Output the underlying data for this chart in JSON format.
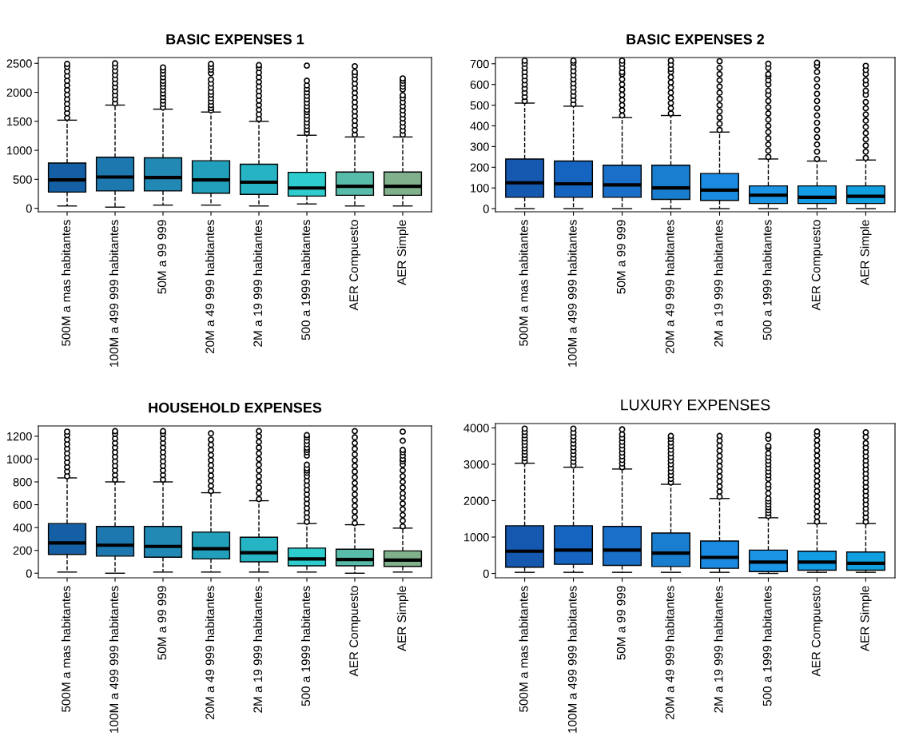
{
  "chart_data": [
    {
      "type": "box",
      "title": "BASIC EXPENSES 1",
      "categories": [
        "500M a mas habitantes",
        "100M a 499 999 habitantes",
        "50M a 99 999",
        "20M a 49 999 habitantes",
        "2M a 19 999 habitantes",
        "500 a 1999 habitantes",
        "AER Compuesto",
        "AER Simple"
      ],
      "colors": [
        "#1560a5",
        "#1e78b0",
        "#2289b5",
        "#22a0bb",
        "#26b3c3",
        "#2ecdcd",
        "#58bcaa",
        "#80b08c"
      ],
      "ylim": [
        -60,
        2600
      ],
      "yticks": [
        0,
        500,
        1000,
        1500,
        2000,
        2500
      ],
      "grid": false,
      "boxes": [
        {
          "low": 40,
          "q1": 280,
          "median": 490,
          "q3": 780,
          "high": 1520,
          "outliers": [
            1560,
            1640,
            1720,
            1800,
            1880,
            1960,
            2040,
            2120,
            2200,
            2280,
            2360,
            2440,
            2490
          ]
        },
        {
          "low": 20,
          "q1": 300,
          "median": 540,
          "q3": 880,
          "high": 1780,
          "outliers": [
            1810,
            1880,
            1950,
            2020,
            2090,
            2160,
            2230,
            2300,
            2370,
            2440,
            2500
          ]
        },
        {
          "low": 55,
          "q1": 300,
          "median": 530,
          "q3": 870,
          "high": 1710,
          "outliers": [
            1740,
            1800,
            1860,
            1920,
            1980,
            2040,
            2100,
            2150,
            2200,
            2260,
            2320,
            2380,
            2430
          ]
        },
        {
          "low": 55,
          "q1": 260,
          "median": 490,
          "q3": 820,
          "high": 1660,
          "outliers": [
            1690,
            1730,
            1780,
            1840,
            1900,
            1960,
            2010,
            2080,
            2150,
            2220,
            2330,
            2390,
            2440,
            2490
          ]
        },
        {
          "low": 40,
          "q1": 240,
          "median": 450,
          "q3": 760,
          "high": 1500,
          "outliers": [
            1540,
            1620,
            1700,
            1780,
            1860,
            1940,
            2020,
            2100,
            2180,
            2260,
            2340,
            2420,
            2470
          ]
        },
        {
          "low": 75,
          "q1": 210,
          "median": 350,
          "q3": 620,
          "high": 1260,
          "outliers": [
            1300,
            1360,
            1420,
            1480,
            1540,
            1600,
            1660,
            1700,
            1760,
            1820,
            1880,
            1940,
            2000,
            2060,
            2120,
            2200,
            2460
          ]
        },
        {
          "low": 40,
          "q1": 225,
          "median": 380,
          "q3": 625,
          "high": 1230,
          "outliers": [
            1270,
            1350,
            1430,
            1510,
            1590,
            1670,
            1750,
            1830,
            1910,
            1990,
            2070,
            2150,
            2230,
            2300,
            2350,
            2450
          ]
        },
        {
          "low": 40,
          "q1": 225,
          "median": 380,
          "q3": 625,
          "high": 1230,
          "outliers": [
            1270,
            1340,
            1410,
            1480,
            1550,
            1620,
            1690,
            1760,
            1830,
            1900,
            1950,
            2050,
            2100,
            2150,
            2200,
            2240
          ]
        }
      ]
    },
    {
      "type": "box",
      "title": "BASIC EXPENSES 2",
      "categories": [
        "500M a mas habitantes",
        "100M a 499 999 habitantes",
        "50M a 99 999",
        "20M a 49 999 habitantes",
        "2M a 19 999 habitantes",
        "500 a 1999 habitantes",
        "AER Compuesto",
        "AER Simple"
      ],
      "colors": [
        "#1558b0",
        "#1565c0",
        "#1a70c8",
        "#1a7ed0",
        "#1a8ae0",
        "#1a95e5",
        "#129de5",
        "#10a0e0"
      ],
      "ylim": [
        -15,
        730
      ],
      "yticks": [
        0,
        100,
        200,
        300,
        400,
        500,
        600,
        700
      ],
      "grid": false,
      "boxes": [
        {
          "low": 0,
          "q1": 55,
          "median": 125,
          "q3": 240,
          "high": 510,
          "outliers": [
            520,
            540,
            560,
            580,
            600,
            620,
            640,
            660,
            680,
            700,
            715
          ]
        },
        {
          "low": 0,
          "q1": 55,
          "median": 120,
          "q3": 230,
          "high": 495,
          "outliers": [
            505,
            525,
            545,
            565,
            585,
            605,
            625,
            645,
            665,
            685,
            705,
            715
          ]
        },
        {
          "low": 0,
          "q1": 55,
          "median": 115,
          "q3": 210,
          "high": 440,
          "outliers": [
            450,
            475,
            500,
            525,
            550,
            575,
            600,
            625,
            650,
            660,
            680,
            700,
            715
          ]
        },
        {
          "low": 0,
          "q1": 45,
          "median": 100,
          "q3": 210,
          "high": 450,
          "outliers": [
            460,
            485,
            510,
            535,
            560,
            585,
            610,
            635,
            660,
            675,
            695,
            715
          ]
        },
        {
          "low": 0,
          "q1": 40,
          "median": 90,
          "q3": 170,
          "high": 370,
          "outliers": [
            380,
            410,
            440,
            470,
            500,
            530,
            560,
            590,
            620,
            650,
            680,
            712
          ]
        },
        {
          "low": 0,
          "q1": 25,
          "median": 65,
          "q3": 110,
          "high": 240,
          "outliers": [
            250,
            280,
            310,
            340,
            370,
            400,
            430,
            460,
            490,
            520,
            550,
            570,
            600,
            620,
            640,
            650,
            680,
            700
          ]
        },
        {
          "low": 0,
          "q1": 25,
          "median": 55,
          "q3": 110,
          "high": 230,
          "outliers": [
            240,
            275,
            310,
            345,
            380,
            415,
            450,
            485,
            520,
            555,
            590,
            625,
            660,
            690,
            705
          ]
        },
        {
          "low": 0,
          "q1": 25,
          "median": 60,
          "q3": 110,
          "high": 235,
          "outliers": [
            245,
            275,
            305,
            335,
            365,
            395,
            425,
            455,
            485,
            515,
            550,
            570,
            600,
            620,
            650,
            670,
            690
          ]
        }
      ]
    },
    {
      "type": "box",
      "title": "HOUSEHOLD EXPENSES",
      "categories": [
        "500M a mas habitantes",
        "100M a 499 999 habitantes",
        "50M a 99 999",
        "20M a 49 999 habitantes",
        "2M a 19 999 habitantes",
        "500 a 1999 habitantes",
        "AER Compuesto",
        "AER Simple"
      ],
      "colors": [
        "#1560a5",
        "#1e78b0",
        "#2289b5",
        "#22a0bb",
        "#26b3c3",
        "#2ecdcd",
        "#58bcaa",
        "#80b08c"
      ],
      "ylim": [
        -40,
        1290
      ],
      "yticks": [
        0,
        200,
        400,
        600,
        800,
        1000,
        1200
      ],
      "grid": false,
      "boxes": [
        {
          "low": 10,
          "q1": 165,
          "median": 265,
          "q3": 435,
          "high": 835,
          "outliers": [
            850,
            890,
            930,
            970,
            1010,
            1050,
            1090,
            1130,
            1170,
            1210,
            1240
          ]
        },
        {
          "low": 0,
          "q1": 150,
          "median": 245,
          "q3": 410,
          "high": 800,
          "outliers": [
            820,
            860,
            900,
            940,
            980,
            1020,
            1060,
            1100,
            1140,
            1180,
            1220,
            1245
          ]
        },
        {
          "low": 10,
          "q1": 140,
          "median": 235,
          "q3": 410,
          "high": 800,
          "outliers": [
            820,
            860,
            900,
            940,
            980,
            1020,
            1060,
            1100,
            1140,
            1180,
            1220,
            1245
          ]
        },
        {
          "low": 10,
          "q1": 125,
          "median": 215,
          "q3": 360,
          "high": 705,
          "outliers": [
            720,
            765,
            810,
            855,
            900,
            945,
            990,
            1035,
            1080,
            1125,
            1170,
            1225
          ]
        },
        {
          "low": 10,
          "q1": 100,
          "median": 180,
          "q3": 315,
          "high": 635,
          "outliers": [
            650,
            700,
            750,
            800,
            850,
            900,
            950,
            1000,
            1050,
            1100,
            1150,
            1200,
            1245
          ]
        },
        {
          "low": 10,
          "q1": 65,
          "median": 125,
          "q3": 220,
          "high": 435,
          "outliers": [
            450,
            490,
            530,
            570,
            610,
            650,
            690,
            730,
            770,
            810,
            850,
            880,
            900,
            920,
            950,
            1030,
            1060,
            1080,
            1100,
            1130,
            1160,
            1190,
            1210
          ]
        },
        {
          "low": 0,
          "q1": 65,
          "median": 120,
          "q3": 210,
          "high": 425,
          "outliers": [
            440,
            490,
            540,
            590,
            640,
            690,
            740,
            790,
            840,
            890,
            940,
            990,
            1040,
            1090,
            1140,
            1190,
            1245
          ]
        },
        {
          "low": 10,
          "q1": 60,
          "median": 115,
          "q3": 195,
          "high": 395,
          "outliers": [
            410,
            460,
            510,
            560,
            610,
            660,
            700,
            750,
            800,
            850,
            900,
            950,
            980,
            1000,
            1030,
            1060,
            1080,
            1160,
            1240
          ]
        }
      ]
    },
    {
      "type": "box",
      "title": "LUXURY EXPENSES",
      "categories": [
        "500M a mas habitantes",
        "100M a 499 999 habitantes",
        "50M a 99 999",
        "20M a 49 999 habitantes",
        "2M a 19 999 habitantes",
        "500 a 1999 habitantes",
        "AER Compuesto",
        "AER Simple"
      ],
      "colors": [
        "#1558b0",
        "#1565c0",
        "#1a70c8",
        "#1a7ed0",
        "#1a8ae0",
        "#1a95e5",
        "#129de5",
        "#10a0e0"
      ],
      "ylim": [
        -120,
        4120
      ],
      "yticks": [
        0,
        1000,
        2000,
        3000,
        4000
      ],
      "grid": false,
      "boxes": [
        {
          "low": 30,
          "q1": 170,
          "median": 610,
          "q3": 1310,
          "high": 3030,
          "outliers": [
            3080,
            3170,
            3260,
            3350,
            3440,
            3530,
            3620,
            3710,
            3800,
            3890,
            3980
          ]
        },
        {
          "low": 30,
          "q1": 250,
          "median": 640,
          "q3": 1310,
          "high": 2920,
          "outliers": [
            2970,
            3070,
            3170,
            3270,
            3370,
            3470,
            3570,
            3670,
            3770,
            3870,
            3980
          ]
        },
        {
          "low": 30,
          "q1": 220,
          "median": 640,
          "q3": 1290,
          "high": 2870,
          "outliers": [
            2920,
            3020,
            3120,
            3220,
            3320,
            3420,
            3520,
            3620,
            3720,
            3820,
            3960
          ]
        },
        {
          "low": 30,
          "q1": 190,
          "median": 560,
          "q3": 1110,
          "high": 2450,
          "outliers": [
            2500,
            2600,
            2700,
            2800,
            2900,
            3000,
            3100,
            3200,
            3300,
            3400,
            3500,
            3600,
            3700,
            3780
          ]
        },
        {
          "low": 30,
          "q1": 140,
          "median": 440,
          "q3": 890,
          "high": 2060,
          "outliers": [
            2110,
            2250,
            2390,
            2530,
            2670,
            2810,
            2950,
            3090,
            3230,
            3370,
            3510,
            3650,
            3780
          ]
        },
        {
          "low": 0,
          "q1": 50,
          "median": 310,
          "q3": 640,
          "high": 1530,
          "outliers": [
            1580,
            1660,
            1740,
            1820,
            1900,
            1980,
            2060,
            2200,
            2350,
            2450,
            2600,
            2700,
            2800,
            2900,
            3000,
            3100,
            3200,
            3300,
            3450,
            3500,
            3700,
            3800
          ]
        },
        {
          "low": 30,
          "q1": 90,
          "median": 310,
          "q3": 610,
          "high": 1370,
          "outliers": [
            1420,
            1560,
            1700,
            1840,
            1980,
            2120,
            2260,
            2400,
            2540,
            2680,
            2820,
            2960,
            3100,
            3240,
            3380,
            3520,
            3660,
            3800,
            3900
          ]
        },
        {
          "low": 30,
          "q1": 90,
          "median": 280,
          "q3": 590,
          "high": 1370,
          "outliers": [
            1420,
            1540,
            1660,
            1780,
            1900,
            2020,
            2140,
            2260,
            2380,
            2500,
            2620,
            2740,
            2860,
            2980,
            3100,
            3220,
            3340,
            3460,
            3580,
            3750,
            3880
          ]
        }
      ]
    }
  ]
}
